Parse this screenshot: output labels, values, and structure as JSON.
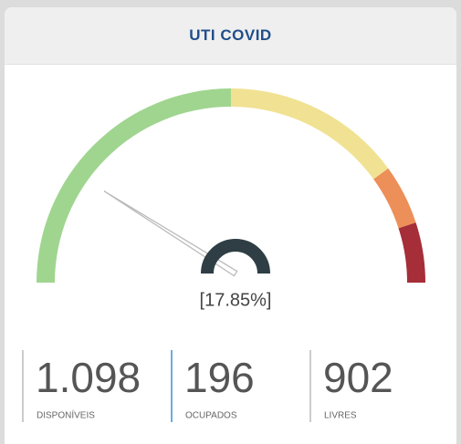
{
  "title": "UTI COVID",
  "gauge": {
    "value": 17.85,
    "value_label": "[17.85%]",
    "range": [
      0,
      100
    ],
    "bands": [
      {
        "from": 0,
        "to": 50,
        "color": "#a0d58f"
      },
      {
        "from": 50,
        "to": 80,
        "color": "#f0e292"
      },
      {
        "from": 80,
        "to": 90,
        "color": "#ec8f59"
      },
      {
        "from": 90,
        "to": 100,
        "color": "#a52e38"
      }
    ],
    "needle_color": "#bbbbbb",
    "hub_color": "#2e3e44"
  },
  "stats": [
    {
      "value": "1.098",
      "label": "DISPONÍVEIS",
      "accent": "#cccccc"
    },
    {
      "value": "196",
      "label": "OCUPADOS",
      "accent": "#6aaee0"
    },
    {
      "value": "902",
      "label": "LIVRES",
      "accent": "#cccccc"
    }
  ]
}
